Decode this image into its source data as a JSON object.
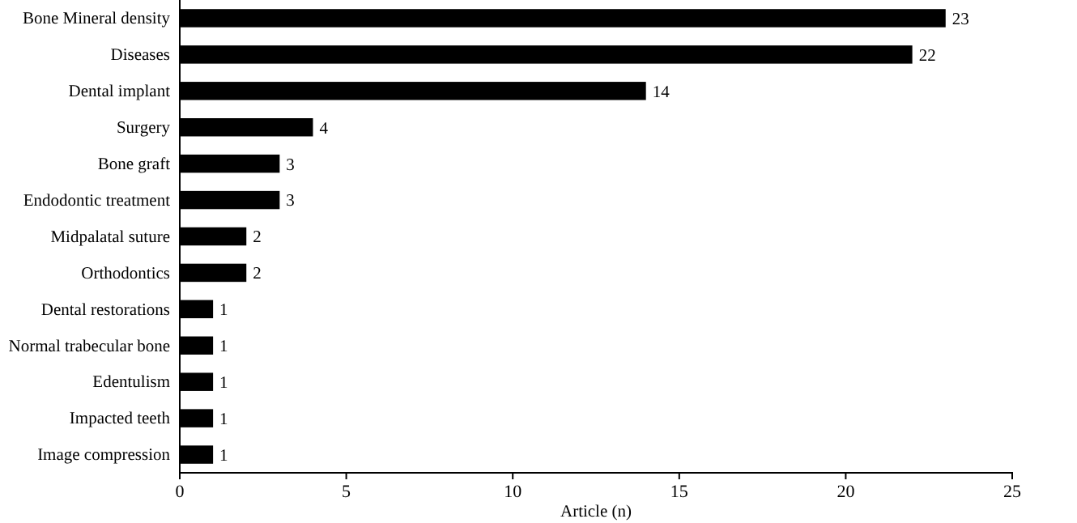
{
  "chart_data": {
    "type": "bar",
    "orientation": "horizontal",
    "xlabel": "Article (n)",
    "categories": [
      "Bone Mineral density",
      "Diseases",
      "Dental implant",
      "Surgery",
      "Bone graft",
      "Endodontic treatment",
      "Midpalatal suture",
      "Orthodontics",
      "Dental restorations",
      "Normal trabecular bone",
      "Edentulism",
      "Impacted teeth",
      "Image compression"
    ],
    "values": [
      23,
      22,
      14,
      4,
      3,
      3,
      2,
      2,
      1,
      1,
      1,
      1,
      1
    ],
    "color": "#000000",
    "xlim": [
      0,
      25
    ],
    "xticks": [
      0,
      5,
      10,
      15,
      20,
      25
    ],
    "data_labels": true,
    "grid": false
  }
}
